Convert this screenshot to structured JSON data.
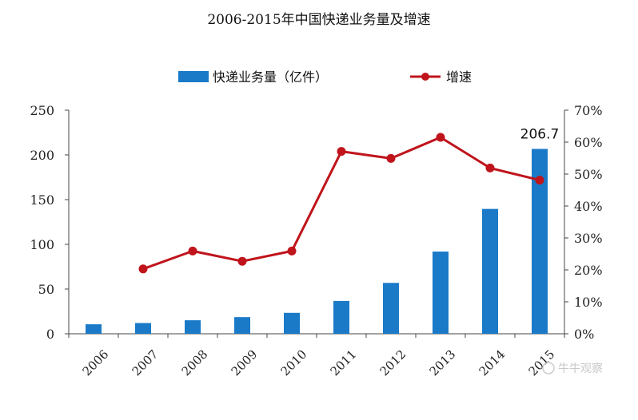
{
  "watermark": "牛牛观察",
  "colors": {
    "bar": "#1a7ac8",
    "line": "#c0141c",
    "axis": "#444444"
  },
  "chart_data": {
    "type": "bar",
    "title": "2006-2015年中国快递业务量及增速",
    "categories": [
      "2006",
      "2007",
      "2008",
      "2009",
      "2010",
      "2011",
      "2012",
      "2013",
      "2014",
      "2015"
    ],
    "series": [
      {
        "name": "快递业务量（亿件）",
        "type": "bar",
        "axis": "left",
        "values": [
          10.6,
          12.0,
          15.1,
          18.6,
          23.4,
          36.7,
          56.9,
          91.9,
          139.6,
          206.7
        ]
      },
      {
        "name": "增速",
        "type": "line",
        "axis": "right",
        "values": [
          null,
          0.203,
          0.259,
          0.227,
          0.259,
          0.571,
          0.549,
          0.615,
          0.519,
          0.481
        ]
      }
    ],
    "left_axis": {
      "ylim": [
        0,
        250
      ],
      "ticks": [
        "0",
        "50",
        "100",
        "150",
        "200",
        "250"
      ]
    },
    "right_axis": {
      "ylim": [
        0,
        0.7
      ],
      "ticks": [
        "0%",
        "10%",
        "20%",
        "30%",
        "40%",
        "50%",
        "60%",
        "70%"
      ]
    },
    "data_labels": [
      {
        "category": "2015",
        "text": "206.7"
      }
    ],
    "legend_position": "top",
    "grid": false
  }
}
